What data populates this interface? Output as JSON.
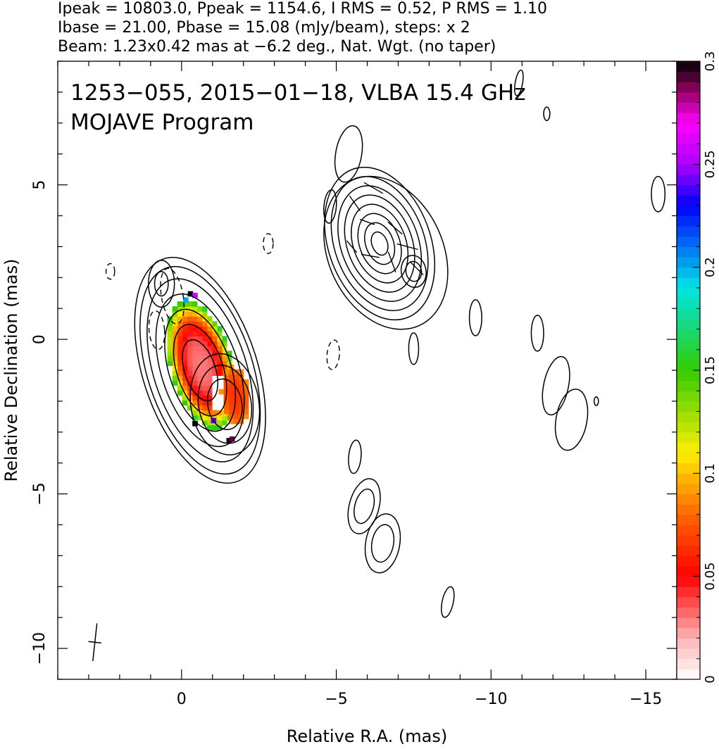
{
  "header": {
    "line1": "Ipeak = 10803.0, Ppeak = 1154.6, I RMS = 0.52, P RMS = 1.10",
    "line2": "Ibase = 21.00, Pbase = 15.08 (mJy/beam), steps: x 2",
    "line3": "Beam: 1.23x0.42 mas at −6.2 deg., Nat. Wgt. (no taper)"
  },
  "annotation": {
    "line1": "1253−055, 2015−01−18, VLBA 15.4 GHz",
    "line2": "MOJAVE Program"
  },
  "chart_data": {
    "type": "heatmap",
    "xlabel": "Relative R.A. (mas)",
    "ylabel": "Relative Declination (mas)",
    "xlim": [
      4,
      -16
    ],
    "ylim": [
      -11,
      9
    ],
    "x_ticks": [
      {
        "value": 0,
        "label": "0"
      },
      {
        "value": -5,
        "label": "−5"
      },
      {
        "value": -10,
        "label": "−10"
      },
      {
        "value": -15,
        "label": "−15"
      }
    ],
    "y_ticks": [
      {
        "value": 5,
        "label": "5"
      },
      {
        "value": 0,
        "label": "0"
      },
      {
        "value": -5,
        "label": "−5"
      },
      {
        "value": -10,
        "label": "−10"
      }
    ],
    "colorbar": {
      "range": [
        0,
        0.3
      ],
      "ticks": [
        {
          "value": 0,
          "label": "0"
        },
        {
          "value": 0.05,
          "label": "0.05"
        },
        {
          "value": 0.1,
          "label": "0.1"
        },
        {
          "value": 0.15,
          "label": "0.15"
        },
        {
          "value": 0.2,
          "label": "0.2"
        },
        {
          "value": 0.25,
          "label": "0.25"
        },
        {
          "value": 0.3,
          "label": "0.3"
        }
      ],
      "stops": [
        {
          "v": 0.0,
          "c": "#ffffff"
        },
        {
          "v": 0.02,
          "c": "#ffb3b3"
        },
        {
          "v": 0.05,
          "c": "#ff0000"
        },
        {
          "v": 0.08,
          "c": "#ff6600"
        },
        {
          "v": 0.11,
          "c": "#ffee00"
        },
        {
          "v": 0.15,
          "c": "#33cc00"
        },
        {
          "v": 0.19,
          "c": "#00e5e5"
        },
        {
          "v": 0.23,
          "c": "#0000ff"
        },
        {
          "v": 0.25,
          "c": "#aa00ff"
        },
        {
          "v": 0.27,
          "c": "#ff00ff"
        },
        {
          "v": 0.285,
          "c": "#990066"
        },
        {
          "v": 0.3,
          "c": "#000000"
        }
      ]
    },
    "contour_components": [
      {
        "name": "core",
        "x": -0.6,
        "y": -1.0,
        "a": [
          0.5,
          0.75,
          1.0,
          1.25,
          1.5,
          1.7,
          1.85
        ],
        "ratio": 2.05,
        "angle": -18
      },
      {
        "name": "core-jet",
        "x": -1.4,
        "y": -2.1,
        "a": [
          0.55,
          0.85,
          1.1
        ],
        "ratio": 1.5,
        "angle": -10
      },
      {
        "name": "jet-knot",
        "x": -6.4,
        "y": 3.1,
        "a": [
          0.25,
          0.45,
          0.65,
          0.85,
          1.05,
          1.25,
          1.45,
          1.65
        ],
        "ratio": 1.55,
        "angle": -20
      },
      {
        "name": "jet-halo",
        "x": -6.6,
        "y": 2.8,
        "a": [
          1.85
        ],
        "ratio": 1.4,
        "angle": -25
      },
      {
        "name": "knot-east",
        "x": -7.5,
        "y": 2.2,
        "a": [
          0.25,
          0.4
        ],
        "ratio": 1.3,
        "angle": -10
      },
      {
        "name": "blob-a",
        "x": -5.4,
        "y": 6.0,
        "a": [
          0.42
        ],
        "ratio": 2.2,
        "angle": 10
      },
      {
        "name": "blob-b",
        "x": -4.8,
        "y": 4.3,
        "a": [
          0.2
        ],
        "ratio": 2.7,
        "angle": 5
      },
      {
        "name": "blob-c",
        "x": -9.5,
        "y": 0.7,
        "a": [
          0.2
        ],
        "ratio": 2.9,
        "angle": 0
      },
      {
        "name": "blob-d",
        "x": -11.5,
        "y": 0.2,
        "a": [
          0.2
        ],
        "ratio": 2.9,
        "angle": 0
      },
      {
        "name": "blob-e",
        "x": -12.1,
        "y": -1.5,
        "a": [
          0.4
        ],
        "ratio": 2.4,
        "angle": 12
      },
      {
        "name": "blob-f",
        "x": -12.6,
        "y": -2.6,
        "a": [
          0.5
        ],
        "ratio": 2.0,
        "angle": 10
      },
      {
        "name": "blob-g",
        "x": -15.4,
        "y": 4.7,
        "a": [
          0.22
        ],
        "ratio": 2.6,
        "angle": 0
      },
      {
        "name": "blob-h",
        "x": -10.9,
        "y": 8.3,
        "a": [
          0.12
        ],
        "ratio": 3.5,
        "angle": 10
      },
      {
        "name": "blob-i",
        "x": -11.8,
        "y": 7.3,
        "a": [
          0.1
        ],
        "ratio": 2.2,
        "angle": 0
      },
      {
        "name": "blob-j",
        "x": -13.4,
        "y": -2.0,
        "a": [
          0.07
        ],
        "ratio": 2.0,
        "angle": 0
      },
      {
        "name": "blob-k",
        "x": -5.6,
        "y": -3.8,
        "a": [
          0.2
        ],
        "ratio": 2.7,
        "angle": 5
      },
      {
        "name": "blob-l",
        "x": -5.9,
        "y": -5.4,
        "a": [
          0.3,
          0.48
        ],
        "ratio": 1.9,
        "angle": 15
      },
      {
        "name": "blob-m",
        "x": -6.5,
        "y": -6.6,
        "a": [
          0.35,
          0.55
        ],
        "ratio": 1.75,
        "angle": 10
      },
      {
        "name": "blob-n",
        "x": -8.6,
        "y": -8.5,
        "a": [
          0.18
        ],
        "ratio": 2.8,
        "angle": 12
      },
      {
        "name": "blob-o",
        "x": -7.5,
        "y": -0.3,
        "a": [
          0.16
        ],
        "ratio": 3.2,
        "angle": 0
      },
      {
        "name": "north-lobe",
        "x": 0.65,
        "y": 1.8,
        "a": [
          0.22,
          0.42
        ],
        "ratio": 1.8,
        "angle": 0
      }
    ],
    "negative_contours": [
      {
        "name": "neg-a",
        "x": 2.3,
        "y": 2.2,
        "a": 0.14,
        "ratio": 1.8,
        "angle": 0
      },
      {
        "name": "neg-b",
        "x": -2.8,
        "y": 3.1,
        "a": 0.16,
        "ratio": 2.0,
        "angle": 0
      },
      {
        "name": "neg-c",
        "x": -4.9,
        "y": -0.5,
        "a": 0.2,
        "ratio": 2.4,
        "angle": 5
      },
      {
        "name": "neg-d",
        "x": 0.3,
        "y": 1.4,
        "a": 0.35,
        "ratio": 2.6,
        "angle": -10
      },
      {
        "name": "neg-e",
        "x": 0.8,
        "y": 0.3,
        "a": 0.25,
        "ratio": 2.5,
        "angle": -5
      }
    ],
    "polarization_components": [
      {
        "name": "core-pol",
        "x": -0.55,
        "y": -0.9,
        "rx": 1.0,
        "ry": 2.15,
        "angle": -16,
        "peak": 0.03,
        "edge": 0.16
      },
      {
        "name": "jet-pol",
        "x": -1.65,
        "y": -1.9,
        "rx": 0.45,
        "ry": 0.95,
        "angle": -5,
        "peak": 0.065,
        "edge": 0.09
      }
    ],
    "polarization_edge_pixels": [
      {
        "x": -0.2,
        "y": 1.4,
        "v": 0.3
      },
      {
        "x": -0.35,
        "y": 1.35,
        "v": 0.26
      },
      {
        "x": -0.05,
        "y": 1.2,
        "v": 0.2
      },
      {
        "x": -0.95,
        "y": -2.7,
        "v": 0.24
      },
      {
        "x": -0.35,
        "y": -2.8,
        "v": 0.3
      },
      {
        "x": -1.45,
        "y": -3.35,
        "v": 0.3
      },
      {
        "x": -1.55,
        "y": -3.3,
        "v": 0.29
      }
    ],
    "evpa_vectors": [
      {
        "x": -6.2,
        "y": 4.9,
        "len": 0.35,
        "pa": 60
      },
      {
        "x": -5.6,
        "y": 4.4,
        "len": 0.3,
        "pa": 35
      },
      {
        "x": -6.0,
        "y": 3.8,
        "len": 0.25,
        "pa": 70
      },
      {
        "x": -6.9,
        "y": 3.6,
        "len": 0.3,
        "pa": 50
      },
      {
        "x": -7.3,
        "y": 3.0,
        "len": 0.35,
        "pa": 75
      },
      {
        "x": -6.8,
        "y": 2.5,
        "len": 0.35,
        "pa": 20
      },
      {
        "x": -7.6,
        "y": 2.3,
        "len": 0.3,
        "pa": 45
      },
      {
        "x": -6.1,
        "y": 2.7,
        "len": 0.3,
        "pa": 80
      },
      {
        "x": -5.5,
        "y": 3.0,
        "len": 0.25,
        "pa": 40
      }
    ],
    "beam": {
      "x": 2.8,
      "y": -9.8,
      "major": 1.23,
      "minor": 0.42,
      "pa": -6.2
    }
  }
}
